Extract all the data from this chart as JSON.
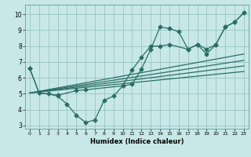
{
  "xlabel": "Humidex (Indice chaleur)",
  "bg_color": "#c8e8e8",
  "grid_color": "#a0c8c8",
  "line_color": "#2a6e65",
  "xlim": [
    -0.5,
    23.5
  ],
  "ylim": [
    2.8,
    10.6
  ],
  "xticks": [
    0,
    1,
    2,
    3,
    4,
    5,
    6,
    7,
    8,
    9,
    10,
    11,
    12,
    13,
    14,
    15,
    16,
    17,
    18,
    19,
    20,
    21,
    22,
    23
  ],
  "yticks": [
    3,
    4,
    5,
    6,
    7,
    8,
    9,
    10
  ],
  "series_jagged": [
    [
      0,
      6.6
    ],
    [
      1,
      5.05
    ],
    [
      2,
      5.0
    ],
    [
      3,
      4.85
    ],
    [
      4,
      4.35
    ],
    [
      5,
      3.65
    ],
    [
      6,
      3.2
    ],
    [
      7,
      3.35
    ],
    [
      8,
      4.6
    ],
    [
      9,
      4.85
    ],
    [
      10,
      5.5
    ],
    [
      11,
      5.6
    ],
    [
      12,
      6.55
    ],
    [
      13,
      7.8
    ],
    [
      14,
      9.2
    ],
    [
      15,
      9.1
    ],
    [
      16,
      8.9
    ],
    [
      17,
      7.8
    ],
    [
      18,
      8.1
    ],
    [
      19,
      7.8
    ],
    [
      20,
      8.1
    ],
    [
      21,
      9.2
    ],
    [
      22,
      9.5
    ],
    [
      23,
      10.1
    ]
  ],
  "series_smooth": [
    [
      0,
      6.6
    ],
    [
      1,
      5.05
    ],
    [
      3,
      4.9
    ],
    [
      5,
      5.2
    ],
    [
      6,
      5.25
    ],
    [
      10,
      5.5
    ],
    [
      11,
      6.5
    ],
    [
      12,
      7.3
    ],
    [
      13,
      8.0
    ],
    [
      14,
      8.0
    ],
    [
      15,
      8.1
    ],
    [
      17,
      7.8
    ],
    [
      18,
      8.1
    ],
    [
      19,
      7.5
    ],
    [
      20,
      8.1
    ],
    [
      21,
      9.2
    ],
    [
      22,
      9.5
    ],
    [
      23,
      10.1
    ]
  ],
  "trend_lines": [
    {
      "x": [
        0,
        23
      ],
      "y": [
        5.05,
        7.5
      ]
    },
    {
      "x": [
        0,
        23
      ],
      "y": [
        5.05,
        7.1
      ]
    },
    {
      "x": [
        0,
        23
      ],
      "y": [
        5.05,
        6.75
      ]
    },
    {
      "x": [
        0,
        23
      ],
      "y": [
        5.05,
        6.4
      ]
    }
  ]
}
